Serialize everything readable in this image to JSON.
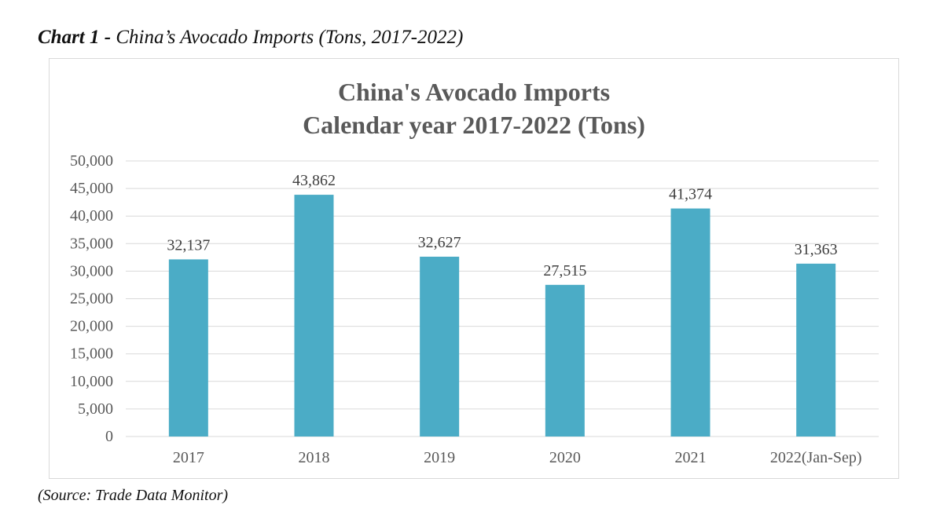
{
  "caption": {
    "label": "Chart 1 -",
    "text": "China’s Avocado Imports (Tons, 2017-2022)"
  },
  "source": "(Source: Trade Data Monitor)",
  "colors": {
    "bar": "#4bacc6",
    "grid": "#d9d9d9",
    "axis_text": "#595959",
    "title_text": "#595959"
  },
  "chart_data": {
    "type": "bar",
    "title_lines": [
      "China's Avocado Imports",
      "Calendar year 2017-2022 (Tons)"
    ],
    "categories": [
      "2017",
      "2018",
      "2019",
      "2020",
      "2021",
      "2022(Jan-Sep)"
    ],
    "values": [
      32137,
      43862,
      32627,
      27515,
      41374,
      31363
    ],
    "value_labels": [
      "32,137",
      "43,862",
      "32,627",
      "27,515",
      "41,374",
      "31,363"
    ],
    "ylim": [
      0,
      50000
    ],
    "yticks": [
      0,
      5000,
      10000,
      15000,
      20000,
      25000,
      30000,
      35000,
      40000,
      45000,
      50000
    ],
    "ytick_labels": [
      "0",
      "5,000",
      "10,000",
      "15,000",
      "20,000",
      "25,000",
      "30,000",
      "35,000",
      "40,000",
      "45,000",
      "50,000"
    ],
    "grid": true,
    "legend": "none"
  }
}
